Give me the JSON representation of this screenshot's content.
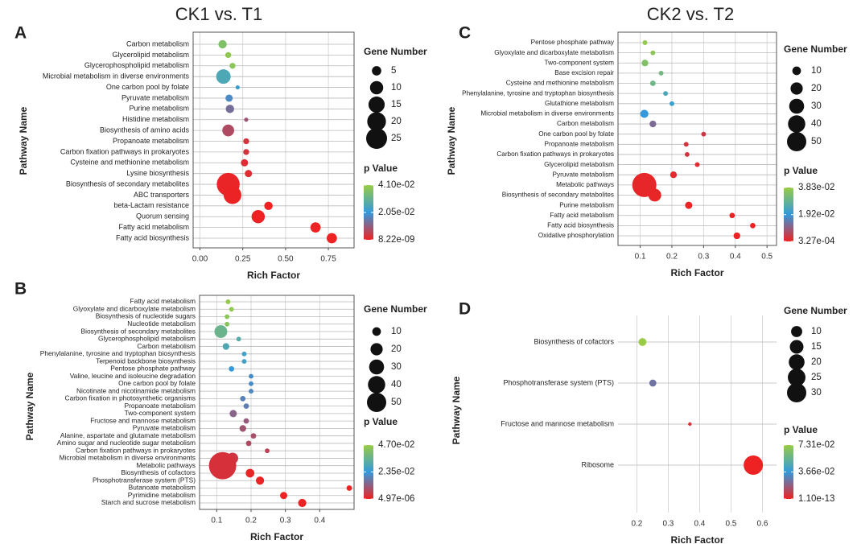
{
  "chart_data": [
    {
      "type": "scatter",
      "panel": "A",
      "title": "CK1 vs. T1",
      "xlabel": "Rich Factor",
      "ylabel": "Pathway Name",
      "categories": [
        "Carbon metabolism",
        "Glycerolipid metabolism",
        "Glycerophospholipid metabolism",
        "Microbial metabolism in diverse environments",
        "One carbon pool by folate",
        "Pyruvate metabolism",
        "Purine metabolism",
        "Histidine metabolism",
        "Biosynthesis of amino acids",
        "Propanoate metabolism",
        "Carbon fixation pathways in prokaryotes",
        "Cysteine and methionine metabolism",
        "Lysine biosynthesis",
        "Biosynthesis of secondary metabolites",
        "ABC transporters",
        "beta-Lactam resistance",
        "Quorum sensing",
        "Fatty acid metabolism",
        "Fatty acid biosynthesis"
      ],
      "values": [
        0.132,
        0.165,
        0.19,
        0.137,
        0.22,
        0.17,
        0.175,
        0.27,
        0.165,
        0.27,
        0.27,
        0.26,
        0.283,
        0.165,
        0.19,
        0.4,
        0.34,
        0.675,
        0.77
      ],
      "sizes": [
        4,
        2,
        2,
        12,
        1,
        3,
        4,
        1,
        8,
        2,
        2,
        3,
        3,
        30,
        18,
        4,
        10,
        6,
        6
      ],
      "p_values": [
        0.036,
        0.039,
        0.038,
        0.026,
        0.022,
        0.018,
        0.013,
        0.009,
        0.007,
        0.003,
        0.003,
        0.002,
        0.0015,
        0.0005,
        0.0002,
        2e-05,
        1e-06,
        1e-07,
        8.22e-09
      ],
      "xlim": [
        -0.04,
        0.9
      ],
      "xticks": [
        {
          "value": 0,
          "label": "0.00"
        },
        0.25,
        {
          "value": 0.5,
          "label": "0.50"
        },
        0.75
      ],
      "size_label": "Gene Number",
      "size_ticks": [
        5,
        10,
        15,
        20,
        25
      ],
      "color_label": "p Value",
      "color_ticks": [
        {
          "value": 0.041,
          "label": "4.10e-02"
        },
        {
          "value": 0.0205,
          "label": "2.05e-02"
        },
        {
          "value": 8.22e-09,
          "label": "8.22e-09"
        }
      ],
      "colors": [
        "#ee2222",
        "#3399dd",
        "#99cc44"
      ],
      "grid": true,
      "border": true
    },
    {
      "type": "scatter",
      "panel": "B",
      "xlabel": "Rich Factor",
      "ylabel": "Pathway Name",
      "categories": [
        "Fatty acid metabolism",
        "Glyoxylate and dicarboxylate metabolism",
        "Biosynthesis of nucleotide sugars",
        "Nucleotide metabolism",
        "Biosynthesis of secondary metabolites",
        "Glycerophospholipid metabolism",
        "Carbon metabolism",
        "Phenylalanine, tyrosine and tryptophan biosynthesis",
        "Terpenoid backbone biosynthesis",
        "Pentose phosphate pathway",
        "Valine, leucine and isoleucine degradation",
        "One carbon pool by folate",
        "Nicotinate and nicotinamide metabolism",
        "Carbon fixation in photosynthetic organisms",
        "Propanoate metabolism",
        "Two-component system",
        "Fructose and mannose metabolism",
        "Pyruvate metabolism",
        "Alanine, aspartate and glutamate metabolism",
        "Amino sugar and nucleotide sugar metabolism",
        "Carbon fixation pathways in prokaryotes",
        "Microbial metabolism in diverse environments",
        "Metabolic pathways",
        "Biosynthesis of cofactors",
        "Phosphotransferase system (PTS)",
        "Butanoate metabolism",
        "Pyrimidine metabolism",
        "Starch and sucrose metabolism"
      ],
      "values": [
        0.133,
        0.143,
        0.13,
        0.13,
        0.112,
        0.164,
        0.127,
        0.18,
        0.18,
        0.143,
        0.2,
        0.2,
        0.2,
        0.176,
        0.186,
        0.148,
        0.186,
        0.176,
        0.207,
        0.193,
        0.247,
        0.146,
        0.117,
        0.197,
        0.226,
        0.486,
        0.295,
        0.349
      ],
      "sizes": [
        3,
        3,
        3,
        3,
        22,
        3,
        6,
        3,
        3,
        4,
        3,
        3,
        3,
        4,
        4,
        7,
        4,
        6,
        4,
        4,
        3,
        17,
        100,
        10,
        9,
        4,
        7,
        9
      ],
      "p_values": [
        0.046,
        0.045,
        0.044,
        0.043,
        0.036,
        0.032,
        0.03,
        0.027,
        0.027,
        0.024,
        0.021,
        0.021,
        0.02,
        0.019,
        0.018,
        0.013,
        0.011,
        0.01,
        0.009,
        0.008,
        0.006,
        0.004,
        0.003,
        0.0005,
        0.0002,
        3e-05,
        2e-05,
        4.97e-06
      ],
      "xlim": [
        0.05,
        0.5
      ],
      "xticks": [
        0.1,
        0.2,
        0.3,
        0.4
      ],
      "size_label": "Gene Number",
      "size_ticks": [
        10,
        20,
        30,
        40,
        50
      ],
      "color_label": "p Value",
      "color_ticks": [
        {
          "value": 0.047,
          "label": "4.70e-02"
        },
        {
          "value": 0.0235,
          "label": "2.35e-02"
        },
        {
          "value": 4.97e-06,
          "label": "4.97e-06"
        }
      ],
      "colors": [
        "#ee2222",
        "#3399dd",
        "#99cc44"
      ],
      "grid": true,
      "border": true
    },
    {
      "type": "scatter",
      "panel": "C",
      "title": "CK2 vs. T2",
      "xlabel": "Rich Factor",
      "ylabel": "Pathway Name",
      "categories": [
        "Pentose phosphate pathway",
        "Glyoxylate and dicarboxylate metabolism",
        "Two-component system",
        "Base excision repair",
        "Cysteine and methionine metabolism",
        "Phenylalanine, tyrosine and tryptophan biosynthesis",
        "Glutathione metabolism",
        "Microbial metabolism in diverse environments",
        "Carbon metabolism",
        "One carbon pool by folate",
        "Propanoate metabolism",
        "Carbon fixation pathways in prokaryotes",
        "Glycerolipid metabolism",
        "Pyruvate metabolism",
        "Metabolic pathways",
        "Biosynthesis of secondary metabolites",
        "Purine metabolism",
        "Fatty acid metabolism",
        "Fatty acid biosynthesis",
        "Oxidative phosphorylation"
      ],
      "values": [
        0.115,
        0.14,
        0.115,
        0.166,
        0.14,
        0.18,
        0.2,
        0.113,
        0.14,
        0.3,
        0.245,
        0.248,
        0.28,
        0.205,
        0.113,
        0.146,
        0.253,
        0.39,
        0.455,
        0.405
      ],
      "sizes": [
        3,
        3,
        6,
        3,
        4,
        3,
        3,
        9,
        6,
        3,
        3,
        3,
        3,
        6,
        78,
        22,
        7,
        4,
        4,
        6
      ],
      "p_values": [
        0.037,
        0.036,
        0.034,
        0.031,
        0.03,
        0.024,
        0.021,
        0.019,
        0.012,
        0.004,
        0.003,
        0.003,
        0.002,
        0.0015,
        0.001,
        0.0009,
        0.0007,
        0.0005,
        0.0004,
        0.000327
      ],
      "xlim": [
        0.03,
        0.53
      ],
      "xticks": [
        0.1,
        0.2,
        0.3,
        0.4,
        0.5
      ],
      "size_label": "Gene Number",
      "size_ticks": [
        10,
        20,
        30,
        40,
        50
      ],
      "color_label": "p Value",
      "color_ticks": [
        {
          "value": 0.0383,
          "label": "3.83e-02"
        },
        {
          "value": 0.0192,
          "label": "1.92e-02"
        },
        {
          "value": 0.000327,
          "label": "3.27e-04"
        }
      ],
      "colors": [
        "#ee2222",
        "#3399dd",
        "#99cc44"
      ],
      "grid": true,
      "border": true
    },
    {
      "type": "scatter",
      "panel": "D",
      "xlabel": "Rich Factor",
      "ylabel": "Pathway Name",
      "categories": [
        "Biosynthesis of cofactors",
        "Phosphotransferase system (PTS)",
        "Fructose and mannose metabolism",
        "Ribosome"
      ],
      "values": [
        0.218,
        0.251,
        0.369,
        0.571
      ],
      "sizes": [
        5,
        4,
        1,
        30
      ],
      "p_values": [
        0.0731,
        0.025,
        0.005,
        1.1e-13
      ],
      "xlim": [
        0.14,
        0.645
      ],
      "xticks": [
        0.2,
        0.3,
        0.4,
        0.5,
        0.6
      ],
      "size_label": "Gene Number",
      "size_ticks": [
        10,
        15,
        20,
        25,
        30
      ],
      "color_label": "p Value",
      "color_ticks": [
        {
          "value": 0.0731,
          "label": "7.31e-02"
        },
        {
          "value": 0.0366,
          "label": "3.66e-02"
        },
        {
          "value": 1.1e-13,
          "label": "1.10e-13"
        }
      ],
      "colors": [
        "#ee2222",
        "#3399dd",
        "#99cc44"
      ],
      "grid": true,
      "border": false
    }
  ]
}
